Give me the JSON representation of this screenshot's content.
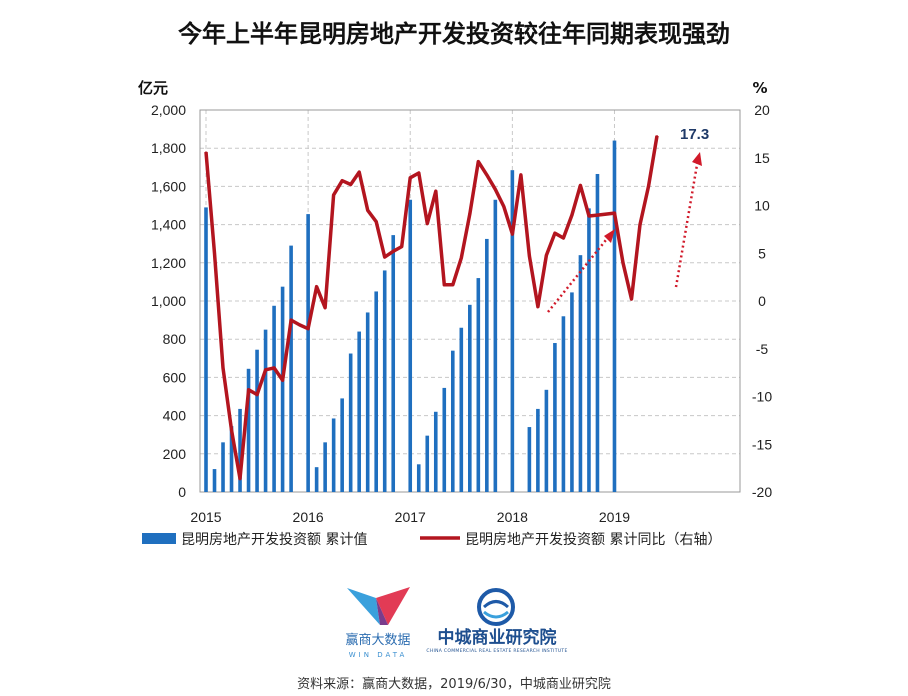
{
  "chart_data": {
    "type": "bar",
    "title": "今年上半年昆明房地产开发投资较往年同期表现强劲",
    "left_unit": "亿元",
    "right_unit": "%",
    "x_ticks": [
      "2015",
      "2016",
      "2017",
      "2018",
      "2019"
    ],
    "y_left_ticks": [
      "2,000",
      "1,800",
      "1,600",
      "1,400",
      "1,200",
      "1,000",
      "800",
      "600",
      "400",
      "200",
      "0"
    ],
    "y_right_ticks": [
      "20",
      "15",
      "10",
      "5",
      "0",
      "-5",
      "-10",
      "-15",
      "-20"
    ],
    "ylim_left": [
      0,
      2000
    ],
    "ylim_right": [
      -20,
      20
    ],
    "grid": true,
    "legend_position": "bottom",
    "series": [
      {
        "name": "昆明房地产开发投资额 累计值",
        "type": "bar",
        "axis": "left",
        "color": "#1f6fbf",
        "x": [
          "2015-01",
          "2015-02",
          "2015-03",
          "2015-04",
          "2015-05",
          "2015-06",
          "2015-07",
          "2015-08",
          "2015-09",
          "2015-10",
          "2015-11",
          "2015-12",
          "2016-01",
          "2016-02",
          "2016-03",
          "2016-04",
          "2016-05",
          "2016-06",
          "2016-07",
          "2016-08",
          "2016-09",
          "2016-10",
          "2016-11",
          "2016-12",
          "2017-01",
          "2017-02",
          "2017-03",
          "2017-04",
          "2017-05",
          "2017-06",
          "2017-07",
          "2017-08",
          "2017-09",
          "2017-10",
          "2017-11",
          "2017-12",
          "2018-01",
          "2018-02",
          "2018-03",
          "2018-04",
          "2018-05",
          "2018-06",
          "2018-07",
          "2018-08",
          "2018-09",
          "2018-10",
          "2018-11",
          "2018-12",
          "2019-01",
          "2019-02",
          "2019-03",
          "2019-04",
          "2019-05",
          "2019-06"
        ],
        "values": [
          1490,
          120,
          260,
          345,
          435,
          645,
          745,
          850,
          975,
          1075,
          1290,
          null,
          1455,
          130,
          260,
          385,
          490,
          725,
          840,
          940,
          1050,
          1160,
          1345,
          null,
          1530,
          145,
          295,
          420,
          545,
          740,
          860,
          980,
          1120,
          1325,
          1530,
          null,
          1685,
          null,
          340,
          435,
          535,
          780,
          920,
          1045,
          1240,
          1485,
          1665,
          null,
          1840,
          null,
          null,
          null,
          null,
          null
        ]
      },
      {
        "name": "昆明房地产开发投资额 累计同比（右轴）",
        "type": "line",
        "axis": "right",
        "color": "#b3151f",
        "x": [
          "2015-01",
          "2015-02",
          "2015-03",
          "2015-04",
          "2015-05",
          "2015-06",
          "2015-07",
          "2015-08",
          "2015-09",
          "2015-10",
          "2015-11",
          "2015-12",
          "2016-01",
          "2016-02",
          "2016-03",
          "2016-04",
          "2016-05",
          "2016-06",
          "2016-07",
          "2016-08",
          "2016-09",
          "2016-10",
          "2016-11",
          "2016-12",
          "2017-01",
          "2017-02",
          "2017-03",
          "2017-04",
          "2017-05",
          "2017-06",
          "2017-07",
          "2017-08",
          "2017-09",
          "2017-10",
          "2017-11",
          "2017-12",
          "2018-01",
          "2018-02",
          "2018-03",
          "2018-04",
          "2018-05",
          "2018-06",
          "2018-07",
          "2018-08",
          "2018-09",
          "2018-10",
          "2018-11",
          "2018-12",
          "2019-01",
          "2019-02",
          "2019-03",
          "2019-04",
          "2019-05",
          "2019-06"
        ],
        "values": [
          15.6,
          5.0,
          -7.0,
          -13.5,
          -18.6,
          -9.3,
          -9.8,
          -7.2,
          -7.0,
          -8.3,
          -2.0,
          -2.5,
          -2.9,
          1.5,
          -0.7,
          11.1,
          12.6,
          12.2,
          13.5,
          9.5,
          8.3,
          4.6,
          5.2,
          5.7,
          12.9,
          13.4,
          8.1,
          11.5,
          1.7,
          1.7,
          4.5,
          9.1,
          14.6,
          13.2,
          11.7,
          9.9,
          7.0,
          13.2,
          4.7,
          -0.6,
          4.8,
          7.1,
          6.6,
          9.0,
          12.1,
          8.9,
          9.0,
          9.1,
          9.2,
          4.0,
          0.2,
          8.0,
          12.0,
          17.3
        ]
      }
    ],
    "annotations": [
      {
        "text": "17.3",
        "x": "2019-06",
        "y_right": 17.3
      }
    ]
  },
  "logos": {
    "logo1_cn": "赢商大数据",
    "logo1_en": "WIN DATA",
    "logo2_cn": "中城商业研究院",
    "logo2_en": "CHINA COMMERCIAL REAL ESTATE RESEARCH INSTITUTE"
  },
  "source": "资料来源：赢商大数据，2019/6/30，中城商业研究院"
}
